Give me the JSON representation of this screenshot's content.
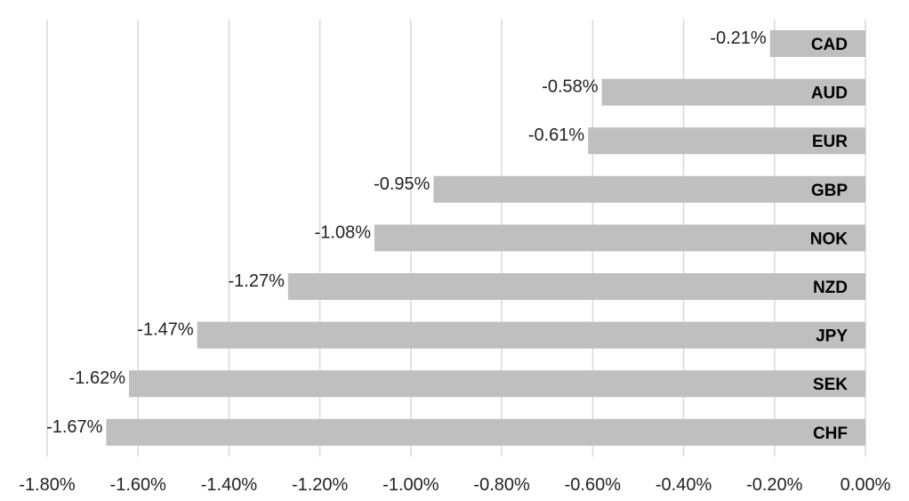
{
  "chart_data": {
    "type": "bar",
    "orientation": "horizontal",
    "categories": [
      "CAD",
      "AUD",
      "EUR",
      "GBP",
      "NOK",
      "NZD",
      "JPY",
      "SEK",
      "CHF"
    ],
    "values": [
      -0.21,
      -0.58,
      -0.61,
      -0.95,
      -1.08,
      -1.27,
      -1.47,
      -1.62,
      -1.67
    ],
    "value_labels": [
      "-0.21%",
      "-0.58%",
      "-0.61%",
      "-0.95%",
      "-1.08%",
      "-1.27%",
      "-1.47%",
      "-1.62%",
      "-1.67%"
    ],
    "x_ticks": [
      -1.8,
      -1.6,
      -1.4,
      -1.2,
      -1.0,
      -0.8,
      -0.6,
      -0.4,
      -0.2,
      0.0
    ],
    "x_tick_labels": [
      "-1.80%",
      "-1.60%",
      "-1.40%",
      "-1.20%",
      "-1.00%",
      "-0.80%",
      "-0.60%",
      "-0.40%",
      "-0.20%",
      "0.00%"
    ],
    "xlim": [
      -1.8,
      0.0
    ],
    "title": "",
    "xlabel": "",
    "ylabel": "",
    "grid": "vertical",
    "legend": "none",
    "colors": {
      "bar": "#bfbfbf",
      "grid": "#d9d9d9",
      "text": "#222222"
    }
  }
}
